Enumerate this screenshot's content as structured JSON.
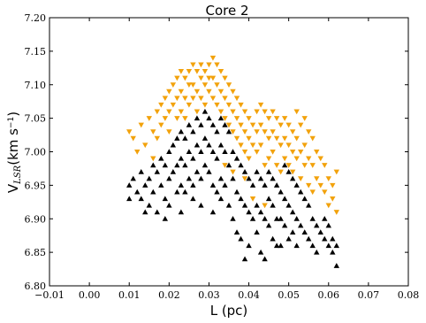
{
  "chart_data": {
    "type": "scatter",
    "title": "Core 2",
    "xlabel": "L (pc)",
    "ylabel": "V",
    "ylabel_sub": "LSR",
    "ylabel_units": "(km s",
    "ylabel_units_sup": "−1",
    "ylabel_units_close": ")",
    "xlim": [
      -0.01,
      0.08
    ],
    "ylim": [
      6.8,
      7.2
    ],
    "xticks": [
      "−0.01",
      "0.00",
      "0.01",
      "0.02",
      "0.03",
      "0.04",
      "0.05",
      "0.06",
      "0.07",
      "0.08"
    ],
    "yticks": [
      "6.80",
      "6.85",
      "6.90",
      "6.95",
      "7.00",
      "7.05",
      "7.10",
      "7.15",
      "7.20"
    ],
    "grid": false,
    "legend": "none",
    "series": [
      {
        "marker": "triangle-down",
        "color": "#f2a20c",
        "points": [
          [
            0.01,
            7.03
          ],
          [
            0.011,
            7.02
          ],
          [
            0.012,
            7.0
          ],
          [
            0.013,
            7.04
          ],
          [
            0.014,
            7.01
          ],
          [
            0.015,
            7.05
          ],
          [
            0.016,
            7.03
          ],
          [
            0.016,
            6.99
          ],
          [
            0.017,
            7.06
          ],
          [
            0.017,
            7.02
          ],
          [
            0.018,
            7.07
          ],
          [
            0.018,
            7.04
          ],
          [
            0.019,
            7.08
          ],
          [
            0.019,
            7.05
          ],
          [
            0.02,
            7.09
          ],
          [
            0.02,
            7.06
          ],
          [
            0.02,
            7.03
          ],
          [
            0.021,
            7.1
          ],
          [
            0.021,
            7.07
          ],
          [
            0.022,
            7.11
          ],
          [
            0.022,
            7.08
          ],
          [
            0.022,
            7.05
          ],
          [
            0.023,
            7.12
          ],
          [
            0.023,
            7.09
          ],
          [
            0.023,
            7.06
          ],
          [
            0.024,
            7.11
          ],
          [
            0.024,
            7.08
          ],
          [
            0.024,
            7.05
          ],
          [
            0.025,
            7.12
          ],
          [
            0.025,
            7.1
          ],
          [
            0.025,
            7.07
          ],
          [
            0.026,
            7.13
          ],
          [
            0.026,
            7.1
          ],
          [
            0.026,
            7.08
          ],
          [
            0.027,
            7.12
          ],
          [
            0.027,
            7.09
          ],
          [
            0.027,
            7.06
          ],
          [
            0.028,
            7.13
          ],
          [
            0.028,
            7.11
          ],
          [
            0.028,
            7.08
          ],
          [
            0.029,
            7.12
          ],
          [
            0.029,
            7.1
          ],
          [
            0.029,
            7.07
          ],
          [
            0.03,
            7.13
          ],
          [
            0.03,
            7.11
          ],
          [
            0.03,
            7.09
          ],
          [
            0.031,
            7.14
          ],
          [
            0.031,
            7.11
          ],
          [
            0.031,
            7.08
          ],
          [
            0.032,
            7.13
          ],
          [
            0.032,
            7.1
          ],
          [
            0.032,
            7.07
          ],
          [
            0.033,
            7.12
          ],
          [
            0.033,
            7.09
          ],
          [
            0.033,
            7.06
          ],
          [
            0.034,
            7.11
          ],
          [
            0.034,
            7.08
          ],
          [
            0.034,
            7.05
          ],
          [
            0.035,
            7.1
          ],
          [
            0.035,
            7.07
          ],
          [
            0.035,
            7.04
          ],
          [
            0.036,
            7.09
          ],
          [
            0.036,
            7.06
          ],
          [
            0.036,
            7.03
          ],
          [
            0.037,
            7.08
          ],
          [
            0.037,
            7.05
          ],
          [
            0.037,
            7.02
          ],
          [
            0.038,
            7.07
          ],
          [
            0.038,
            7.04
          ],
          [
            0.038,
            7.01
          ],
          [
            0.039,
            7.06
          ],
          [
            0.039,
            7.03
          ],
          [
            0.039,
            7.0
          ],
          [
            0.04,
            7.05
          ],
          [
            0.04,
            7.02
          ],
          [
            0.04,
            6.99
          ],
          [
            0.041,
            7.04
          ],
          [
            0.041,
            7.01
          ],
          [
            0.042,
            7.06
          ],
          [
            0.042,
            7.03
          ],
          [
            0.042,
            7.0
          ],
          [
            0.043,
            7.07
          ],
          [
            0.043,
            7.04
          ],
          [
            0.043,
            7.01
          ],
          [
            0.044,
            7.06
          ],
          [
            0.044,
            7.03
          ],
          [
            0.044,
            6.98
          ],
          [
            0.045,
            7.05
          ],
          [
            0.045,
            7.02
          ],
          [
            0.045,
            6.99
          ],
          [
            0.046,
            7.06
          ],
          [
            0.046,
            7.03
          ],
          [
            0.046,
            7.0
          ],
          [
            0.047,
            7.05
          ],
          [
            0.047,
            7.02
          ],
          [
            0.047,
            6.98
          ],
          [
            0.048,
            7.04
          ],
          [
            0.048,
            7.01
          ],
          [
            0.048,
            6.97
          ],
          [
            0.049,
            7.05
          ],
          [
            0.049,
            7.02
          ],
          [
            0.049,
            6.99
          ],
          [
            0.05,
            7.04
          ],
          [
            0.05,
            7.01
          ],
          [
            0.05,
            6.98
          ],
          [
            0.051,
            7.03
          ],
          [
            0.051,
            7.0
          ],
          [
            0.051,
            6.97
          ],
          [
            0.052,
            7.06
          ],
          [
            0.052,
            7.02
          ],
          [
            0.052,
            6.99
          ],
          [
            0.053,
            7.04
          ],
          [
            0.053,
            7.0
          ],
          [
            0.053,
            6.96
          ],
          [
            0.054,
            7.05
          ],
          [
            0.054,
            7.01
          ],
          [
            0.054,
            6.98
          ],
          [
            0.055,
            7.03
          ],
          [
            0.055,
            6.99
          ],
          [
            0.055,
            6.95
          ],
          [
            0.056,
            7.02
          ],
          [
            0.056,
            6.98
          ],
          [
            0.056,
            6.94
          ],
          [
            0.057,
            7.0
          ],
          [
            0.057,
            6.96
          ],
          [
            0.058,
            6.99
          ],
          [
            0.058,
            6.95
          ],
          [
            0.059,
            6.98
          ],
          [
            0.059,
            6.94
          ],
          [
            0.06,
            6.96
          ],
          [
            0.06,
            6.92
          ],
          [
            0.061,
            6.95
          ],
          [
            0.061,
            6.93
          ],
          [
            0.062,
            6.97
          ],
          [
            0.062,
            6.91
          ],
          [
            0.041,
            6.93
          ],
          [
            0.044,
            6.92
          ],
          [
            0.039,
            6.96
          ],
          [
            0.036,
            6.97
          ],
          [
            0.034,
            6.98
          ]
        ]
      },
      {
        "marker": "triangle-up",
        "color": "#000000",
        "points": [
          [
            0.01,
            6.95
          ],
          [
            0.01,
            6.93
          ],
          [
            0.011,
            6.96
          ],
          [
            0.012,
            6.94
          ],
          [
            0.013,
            6.97
          ],
          [
            0.013,
            6.93
          ],
          [
            0.014,
            6.95
          ],
          [
            0.015,
            6.92
          ],
          [
            0.015,
            6.96
          ],
          [
            0.016,
            6.98
          ],
          [
            0.016,
            6.94
          ],
          [
            0.017,
            6.97
          ],
          [
            0.017,
            6.91
          ],
          [
            0.018,
            6.99
          ],
          [
            0.018,
            6.95
          ],
          [
            0.019,
            6.98
          ],
          [
            0.019,
            6.93
          ],
          [
            0.02,
            7.0
          ],
          [
            0.02,
            6.96
          ],
          [
            0.02,
            6.92
          ],
          [
            0.021,
            7.01
          ],
          [
            0.021,
            6.97
          ],
          [
            0.022,
            7.02
          ],
          [
            0.022,
            6.98
          ],
          [
            0.022,
            6.94
          ],
          [
            0.023,
            7.03
          ],
          [
            0.023,
            6.99
          ],
          [
            0.023,
            6.95
          ],
          [
            0.024,
            7.02
          ],
          [
            0.024,
            6.98
          ],
          [
            0.024,
            6.94
          ],
          [
            0.025,
            7.04
          ],
          [
            0.025,
            7.0
          ],
          [
            0.025,
            6.96
          ],
          [
            0.026,
            7.03
          ],
          [
            0.026,
            6.99
          ],
          [
            0.026,
            6.95
          ],
          [
            0.027,
            7.05
          ],
          [
            0.027,
            7.01
          ],
          [
            0.027,
            6.97
          ],
          [
            0.028,
            7.04
          ],
          [
            0.028,
            7.0
          ],
          [
            0.028,
            6.96
          ],
          [
            0.029,
            7.06
          ],
          [
            0.029,
            7.02
          ],
          [
            0.029,
            6.98
          ],
          [
            0.03,
            7.05
          ],
          [
            0.03,
            7.01
          ],
          [
            0.03,
            6.97
          ],
          [
            0.031,
            7.04
          ],
          [
            0.031,
            7.0
          ],
          [
            0.031,
            6.95
          ],
          [
            0.032,
            7.03
          ],
          [
            0.032,
            6.99
          ],
          [
            0.032,
            6.94
          ],
          [
            0.033,
            7.05
          ],
          [
            0.033,
            7.01
          ],
          [
            0.033,
            6.96
          ],
          [
            0.034,
            7.04
          ],
          [
            0.034,
            7.0
          ],
          [
            0.034,
            6.95
          ],
          [
            0.035,
            7.03
          ],
          [
            0.035,
            6.98
          ],
          [
            0.035,
            6.92
          ],
          [
            0.036,
            7.0
          ],
          [
            0.036,
            6.96
          ],
          [
            0.036,
            6.9
          ],
          [
            0.037,
            6.99
          ],
          [
            0.037,
            6.94
          ],
          [
            0.037,
            6.88
          ],
          [
            0.038,
            6.98
          ],
          [
            0.038,
            6.93
          ],
          [
            0.038,
            6.87
          ],
          [
            0.039,
            6.97
          ],
          [
            0.039,
            6.92
          ],
          [
            0.039,
            6.84
          ],
          [
            0.04,
            6.96
          ],
          [
            0.04,
            6.91
          ],
          [
            0.04,
            6.86
          ],
          [
            0.041,
            6.95
          ],
          [
            0.041,
            6.9
          ],
          [
            0.042,
            6.97
          ],
          [
            0.042,
            6.92
          ],
          [
            0.042,
            6.88
          ],
          [
            0.043,
            6.96
          ],
          [
            0.043,
            6.91
          ],
          [
            0.043,
            6.85
          ],
          [
            0.044,
            6.95
          ],
          [
            0.044,
            6.9
          ],
          [
            0.044,
            6.84
          ],
          [
            0.045,
            6.97
          ],
          [
            0.045,
            6.93
          ],
          [
            0.045,
            6.89
          ],
          [
            0.046,
            6.96
          ],
          [
            0.046,
            6.92
          ],
          [
            0.046,
            6.87
          ],
          [
            0.047,
            6.95
          ],
          [
            0.047,
            6.9
          ],
          [
            0.047,
            6.86
          ],
          [
            0.048,
            6.94
          ],
          [
            0.048,
            6.9
          ],
          [
            0.048,
            6.86
          ],
          [
            0.049,
            6.98
          ],
          [
            0.049,
            6.93
          ],
          [
            0.049,
            6.89
          ],
          [
            0.05,
            6.97
          ],
          [
            0.05,
            6.92
          ],
          [
            0.05,
            6.87
          ],
          [
            0.051,
            6.96
          ],
          [
            0.051,
            6.91
          ],
          [
            0.051,
            6.88
          ],
          [
            0.052,
            6.95
          ],
          [
            0.052,
            6.9
          ],
          [
            0.052,
            6.86
          ],
          [
            0.053,
            6.94
          ],
          [
            0.053,
            6.89
          ],
          [
            0.054,
            6.93
          ],
          [
            0.054,
            6.88
          ],
          [
            0.055,
            6.92
          ],
          [
            0.055,
            6.87
          ],
          [
            0.056,
            6.9
          ],
          [
            0.056,
            6.86
          ],
          [
            0.057,
            6.89
          ],
          [
            0.057,
            6.85
          ],
          [
            0.058,
            6.88
          ],
          [
            0.059,
            6.87
          ],
          [
            0.059,
            6.9
          ],
          [
            0.06,
            6.86
          ],
          [
            0.06,
            6.89
          ],
          [
            0.061,
            6.87
          ],
          [
            0.061,
            6.85
          ],
          [
            0.062,
            6.86
          ],
          [
            0.062,
            6.83
          ],
          [
            0.026,
            6.93
          ],
          [
            0.028,
            6.92
          ],
          [
            0.031,
            6.91
          ],
          [
            0.033,
            6.93
          ],
          [
            0.023,
            6.91
          ],
          [
            0.019,
            6.9
          ],
          [
            0.014,
            6.91
          ]
        ]
      }
    ]
  }
}
